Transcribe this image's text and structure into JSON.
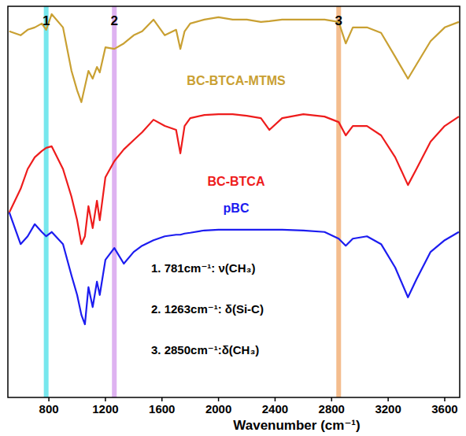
{
  "chart_data": {
    "type": "line",
    "x_label": "Wavenumber (cm⁻¹)",
    "x": [
      520,
      600,
      650,
      700,
      750,
      781,
      820,
      900,
      960,
      1000,
      1030,
      1055,
      1080,
      1110,
      1140,
      1160,
      1200,
      1263,
      1330,
      1400,
      1460,
      1540,
      1620,
      1700,
      1730,
      1760,
      1800,
      1900,
      2000,
      2100,
      2200,
      2300,
      2360,
      2450,
      2600,
      2750,
      2850,
      2900,
      2950,
      3050,
      3150,
      3250,
      3340,
      3400,
      3500,
      3600,
      3700
    ],
    "series": [
      {
        "name": "BC-BTCA-MTMS",
        "color": "#c9a032",
        "values": [
          93.6,
          92.6,
          94.0,
          94.6,
          95.6,
          94.0,
          98.0,
          94.6,
          83.5,
          78.5,
          75.5,
          79.5,
          83.5,
          81.5,
          84.5,
          83.1,
          89.5,
          89.1,
          90.5,
          92.6,
          93.6,
          96.6,
          92.6,
          94.0,
          89.1,
          93.6,
          95.6,
          96.6,
          97.2,
          96.6,
          96.6,
          96.0,
          96.2,
          96.6,
          96.6,
          96.6,
          96.0,
          90.5,
          94.6,
          94.6,
          93.2,
          87.1,
          81.5,
          85.1,
          91.1,
          94.6,
          96.0
        ]
      },
      {
        "name": "BC-BTCA",
        "color": "#ee1c1c",
        "values": [
          47.3,
          53.3,
          58.4,
          61.4,
          63.0,
          63.8,
          64.2,
          58.4,
          51.3,
          45.3,
          39.2,
          41.2,
          48.9,
          43.3,
          50.3,
          45.3,
          56.3,
          60.4,
          63.4,
          65.8,
          67.8,
          71.0,
          69.4,
          68.4,
          62.4,
          69.4,
          71.4,
          72.2,
          72.4,
          72.4,
          72.0,
          71.4,
          68.4,
          71.4,
          72.4,
          71.8,
          70.4,
          67.0,
          69.4,
          69.4,
          67.0,
          61.4,
          54.3,
          58.4,
          65.4,
          69.4,
          71.8
        ]
      },
      {
        "name": "pBC",
        "color": "#1c1cf0",
        "values": [
          47.3,
          39.2,
          41.2,
          44.3,
          42.3,
          41.2,
          42.3,
          39.2,
          31.2,
          26.2,
          21.1,
          18.7,
          28.2,
          23.1,
          29.6,
          26.2,
          35.2,
          38.2,
          34.2,
          37.2,
          38.8,
          40.2,
          41.2,
          41.6,
          41.6,
          41.9,
          42.1,
          42.7,
          42.9,
          42.9,
          42.9,
          42.9,
          42.9,
          42.9,
          42.7,
          42.3,
          40.6,
          38.8,
          40.6,
          41.2,
          39.2,
          33.2,
          25.6,
          30.2,
          37.2,
          40.2,
          42.3
        ]
      }
    ],
    "bands": [
      {
        "label": "1",
        "value": 781,
        "color": "#5fe3ea",
        "annotation": "1. 781cm⁻¹: ν(CH₃)"
      },
      {
        "label": "2",
        "value": 1263,
        "color": "#d8a4ef",
        "annotation": "2. 1263cm⁻¹: δ(Si-C)"
      },
      {
        "label": "3",
        "value": 2850,
        "color": "#f2b27a",
        "annotation": "3. 2850cm⁻¹:δ(CH₃)"
      }
    ],
    "xlim": [
      510,
      3706
    ],
    "ylim": [
      0,
      100
    ],
    "xticks": [
      800,
      1200,
      1600,
      2000,
      2400,
      2800,
      3200,
      3600
    ],
    "tick_labels": "x",
    "grid": false
  }
}
